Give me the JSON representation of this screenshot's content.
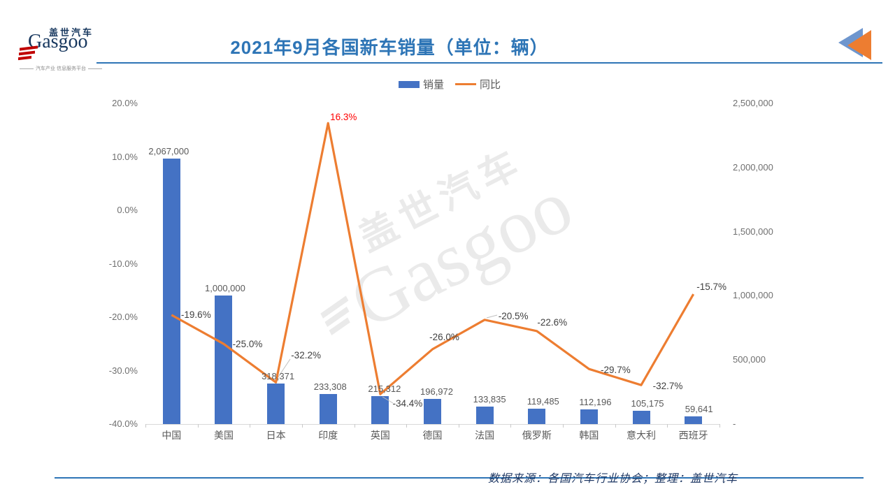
{
  "header": {
    "logo": {
      "brand_cn": "盖世汽车",
      "brand_en": "Gasgoo",
      "tagline": "汽车产业 信息服务平台"
    },
    "title": "2021年9月各国新车销量（单位：辆）"
  },
  "legend": {
    "sales_label": "销量",
    "yoy_label": "同比"
  },
  "watermark": {
    "line1": "盖世汽车",
    "line2": "Gasgoo"
  },
  "footer": {
    "source_note": "数据来源：各国汽车行业协会；整理：盖世汽车"
  },
  "colors": {
    "bar": "#4472C4",
    "line": "#ED7D31",
    "title_blue": "#2E75B6",
    "axis_text": "#6F6F6F",
    "label_text": "#595959",
    "positive_yoy_label": "#FF0000",
    "footer_text": "#1F3864",
    "logo_red": "#C00000",
    "logo_navy": "#17375E",
    "leader_line": "#BFBFBF",
    "axis_line": "#D9D9D9"
  },
  "chart_data": {
    "type": "bar+line",
    "title": "2021年9月各国新车销量（单位：辆）",
    "categories": [
      "中国",
      "美国",
      "日本",
      "印度",
      "英国",
      "德国",
      "法国",
      "俄罗斯",
      "韩国",
      "意大利",
      "西班牙"
    ],
    "series": [
      {
        "name": "销量",
        "type": "bar",
        "axis": "right",
        "unit": "辆",
        "values": [
          2067000,
          1000000,
          318371,
          233308,
          215312,
          196972,
          133835,
          119485,
          112196,
          105175,
          59641
        ],
        "labels": [
          "2,067,000",
          "1,000,000",
          "318,371",
          "233,308",
          "215,312",
          "196,972",
          "133,835",
          "119,485",
          "112,196",
          "105,175",
          "59,641"
        ]
      },
      {
        "name": "同比",
        "type": "line",
        "axis": "left",
        "unit": "%",
        "values": [
          -19.6,
          -25.0,
          -32.2,
          16.3,
          -34.4,
          -26.0,
          -20.5,
          -22.6,
          -29.7,
          -32.7,
          -15.7
        ],
        "labels": [
          "-19.6%",
          "-25.0%",
          "-32.2%",
          "16.3%",
          "-34.4%",
          "-26.0%",
          "-20.5%",
          "-22.6%",
          "-29.7%",
          "-32.7%",
          "-15.7%"
        ]
      }
    ],
    "left_axis": {
      "min": -40,
      "max": 20,
      "tick_labels": [
        "20.0%",
        "10.0%",
        "0.0%",
        "-10.0%",
        "-20.0%",
        "-30.0%",
        "-40.0%"
      ]
    },
    "right_axis": {
      "min": 0,
      "max": 2500000,
      "tick_labels": [
        "2,500,000",
        "2,000,000",
        "1,500,000",
        "1,000,000",
        "500,000",
        "-"
      ]
    },
    "grid": false,
    "legend_position": "top-center"
  }
}
